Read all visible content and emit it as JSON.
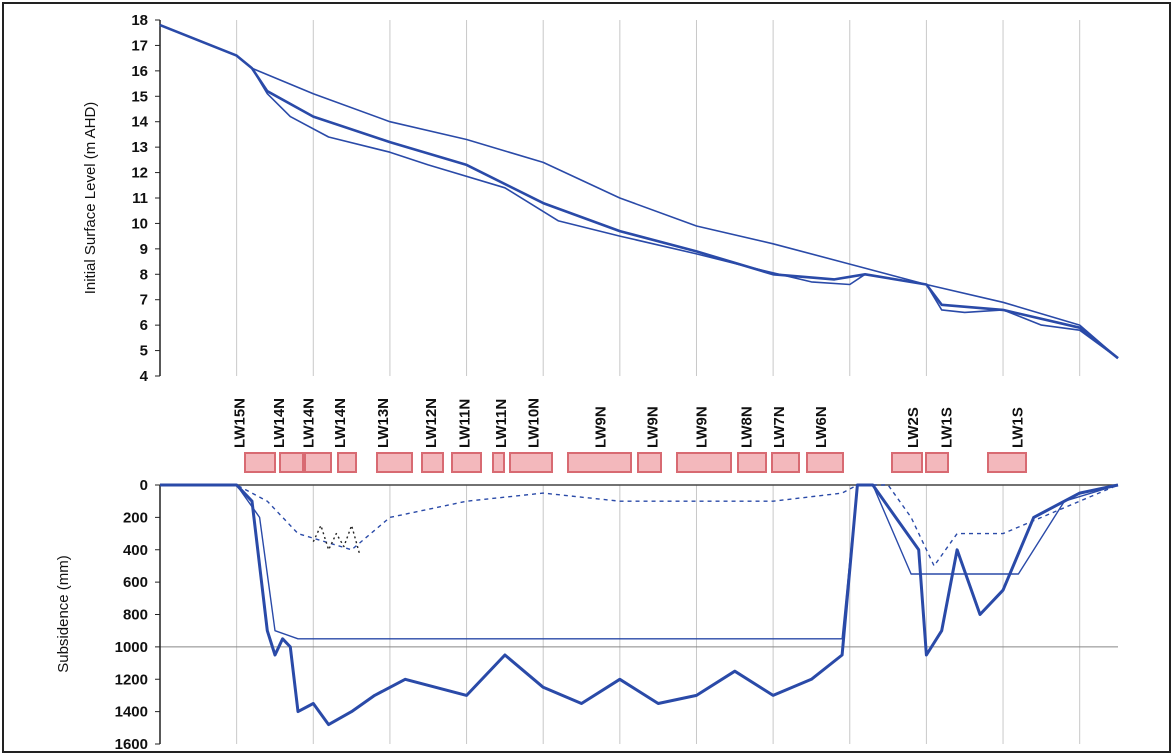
{
  "chart_data": [
    {
      "type": "line",
      "ylabel": "Initial Surface Level (m AHD)",
      "ylim": [
        4,
        18
      ],
      "y_ticks": [
        "4",
        "5",
        "6",
        "7",
        "8",
        "9",
        "10",
        "11",
        "12",
        "13",
        "14",
        "15",
        "16",
        "17",
        "18"
      ],
      "grid": "vertical",
      "color": "#2a4aa8",
      "series": [
        {
          "values": [
            [
              0,
              17.8
            ],
            [
              10,
              16.6
            ],
            [
              12,
              16.1
            ],
            [
              20,
              15.1
            ],
            [
              30,
              14.0
            ],
            [
              40,
              13.3
            ],
            [
              50,
              12.4
            ],
            [
              60,
              11.0
            ],
            [
              70,
              9.9
            ],
            [
              80,
              9.2
            ],
            [
              90,
              8.4
            ],
            [
              100,
              7.6
            ],
            [
              110,
              6.9
            ],
            [
              120,
              6.0
            ],
            [
              125,
              4.7
            ]
          ]
        },
        {
          "values": [
            [
              0,
              17.8
            ],
            [
              10,
              16.6
            ],
            [
              12,
              16.1
            ],
            [
              14,
              15.1
            ],
            [
              17,
              14.2
            ],
            [
              22,
              13.4
            ],
            [
              30,
              12.8
            ],
            [
              35,
              12.3
            ],
            [
              45,
              11.4
            ],
            [
              52,
              10.1
            ],
            [
              60,
              9.5
            ],
            [
              70,
              8.8
            ],
            [
              78,
              8.2
            ],
            [
              85,
              7.7
            ],
            [
              90,
              7.6
            ],
            [
              92,
              8.0
            ],
            [
              100,
              7.6
            ],
            [
              102,
              6.6
            ],
            [
              105,
              6.5
            ],
            [
              110,
              6.6
            ],
            [
              115,
              6.0
            ],
            [
              120,
              5.8
            ],
            [
              125,
              4.7
            ]
          ]
        },
        {
          "values": [
            [
              0,
              17.8
            ],
            [
              10,
              16.6
            ],
            [
              12,
              16.1
            ],
            [
              14,
              15.2
            ],
            [
              20,
              14.2
            ],
            [
              30,
              13.2
            ],
            [
              40,
              12.3
            ],
            [
              50,
              10.8
            ],
            [
              60,
              9.7
            ],
            [
              70,
              8.9
            ],
            [
              80,
              8.0
            ],
            [
              88,
              7.8
            ],
            [
              92,
              8.0
            ],
            [
              100,
              7.6
            ],
            [
              102,
              6.8
            ],
            [
              110,
              6.6
            ],
            [
              120,
              5.9
            ],
            [
              125,
              4.7
            ]
          ]
        }
      ]
    },
    {
      "type": "line",
      "ylabel": "Subsidence (mm)",
      "ylim": [
        1600,
        0
      ],
      "y_ticks": [
        "0",
        "200",
        "400",
        "600",
        "800",
        "1000",
        "1200",
        "1400",
        "1600"
      ],
      "grid": "vertical and horizontal",
      "color": "#2a4aa8",
      "series": [
        {
          "values": [
            [
              0,
              0
            ],
            [
              10,
              0
            ],
            [
              12,
              100
            ],
            [
              14,
              900
            ],
            [
              15,
              1050
            ],
            [
              16,
              950
            ],
            [
              17,
              1000
            ],
            [
              18,
              1400
            ],
            [
              20,
              1350
            ],
            [
              22,
              1480
            ],
            [
              25,
              1400
            ],
            [
              28,
              1300
            ],
            [
              32,
              1200
            ],
            [
              40,
              1300
            ],
            [
              45,
              1050
            ],
            [
              50,
              1250
            ],
            [
              55,
              1350
            ],
            [
              60,
              1200
            ],
            [
              65,
              1350
            ],
            [
              70,
              1300
            ],
            [
              75,
              1150
            ],
            [
              80,
              1300
            ],
            [
              85,
              1200
            ],
            [
              89,
              1050
            ],
            [
              91,
              0
            ],
            [
              93,
              0
            ],
            [
              96,
              200
            ],
            [
              99,
              400
            ],
            [
              100,
              1050
            ],
            [
              102,
              900
            ],
            [
              104,
              400
            ],
            [
              107,
              800
            ],
            [
              110,
              650
            ],
            [
              114,
              200
            ],
            [
              120,
              50
            ],
            [
              125,
              0
            ]
          ]
        },
        {
          "values": [
            [
              0,
              0
            ],
            [
              10,
              0
            ],
            [
              13,
              200
            ],
            [
              15,
              900
            ],
            [
              18,
              950
            ],
            [
              45,
              950
            ],
            [
              60,
              950
            ],
            [
              80,
              950
            ],
            [
              89,
              950
            ],
            [
              91,
              0
            ],
            [
              93,
              0
            ],
            [
              98,
              550
            ],
            [
              105,
              550
            ],
            [
              112,
              550
            ],
            [
              118,
              100
            ],
            [
              125,
              0
            ]
          ]
        },
        {
          "values": [
            [
              5,
              0
            ],
            [
              10,
              0
            ],
            [
              14,
              100
            ],
            [
              18,
              300
            ],
            [
              25,
              400
            ],
            [
              30,
              200
            ],
            [
              40,
              100
            ],
            [
              50,
              50
            ],
            [
              60,
              100
            ],
            [
              70,
              100
            ],
            [
              80,
              100
            ],
            [
              89,
              50
            ],
            [
              91,
              0
            ],
            [
              95,
              0
            ],
            [
              98,
              200
            ],
            [
              101,
              500
            ],
            [
              104,
              300
            ],
            [
              110,
              300
            ],
            [
              115,
              200
            ],
            [
              120,
              100
            ],
            [
              125,
              0
            ]
          ]
        },
        {
          "values": [
            [
              20,
              350
            ],
            [
              21,
              250
            ],
            [
              22,
              400
            ],
            [
              23,
              300
            ],
            [
              24,
              380
            ],
            [
              25,
              250
            ],
            [
              26,
              420
            ]
          ]
        }
      ]
    }
  ],
  "panel_labels": [
    "LW15N",
    "LW14N",
    "LW14N",
    "LW14N",
    "LW13N",
    "LW12N",
    "LW11N",
    "LW11N",
    "LW10N",
    "LW9N",
    "LW9N",
    "LW9N",
    "LW8N",
    "LW7N",
    "LW6N",
    "LW2S",
    "LW1S",
    "LW1S"
  ],
  "colors": {
    "series": "#2a4aa8",
    "panel_fill": "#f3b8bc",
    "panel_edge": "#d86a72",
    "grid": "#c8c8c8"
  }
}
